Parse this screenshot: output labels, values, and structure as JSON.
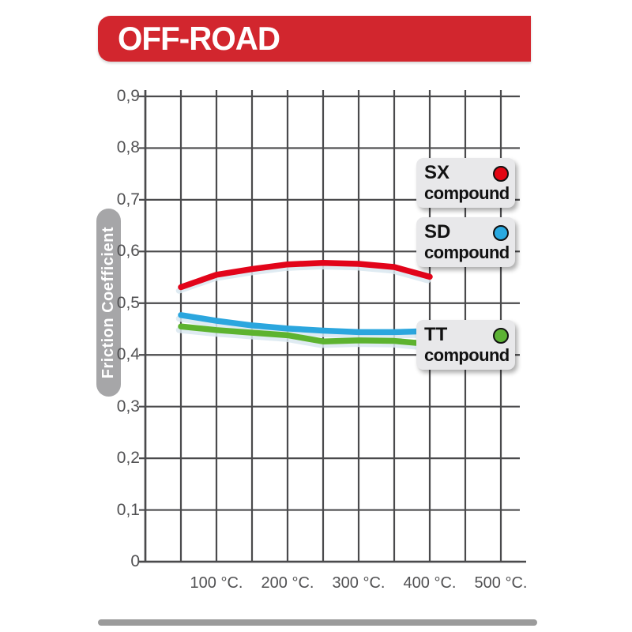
{
  "banner": {
    "title": "OFF-ROAD",
    "bg_color": "#d2262e",
    "text_color": "#ffffff"
  },
  "chart_data": {
    "type": "line",
    "title": "",
    "xlabel": "",
    "ylabel": "Friction Coefficient",
    "x_unit": "°C",
    "xlim": [
      0,
      525
    ],
    "ylim": [
      0,
      0.9
    ],
    "grid": true,
    "grid_color": "#4a4a4c",
    "x_grid_step": 50,
    "y_grid_step": 0.1,
    "x": [
      50,
      100,
      150,
      200,
      250,
      300,
      350,
      400
    ],
    "series": [
      {
        "name": "SX",
        "suffix": "compound",
        "color": "#e2041a",
        "dot_color": "#e30613",
        "values": [
          0.531,
          0.555,
          0.566,
          0.575,
          0.578,
          0.576,
          0.57,
          0.551
        ]
      },
      {
        "name": "SD",
        "suffix": "compound",
        "color": "#2ba6de",
        "dot_color": "#29a9e0",
        "values": [
          0.477,
          0.466,
          0.457,
          0.451,
          0.447,
          0.444,
          0.444,
          0.446
        ]
      },
      {
        "name": "TT",
        "suffix": "compound",
        "color": "#5db32f",
        "dot_color": "#5cb234",
        "values": [
          0.455,
          0.448,
          0.443,
          0.438,
          0.426,
          0.428,
          0.427,
          0.421
        ]
      }
    ],
    "x_ticks": [
      {
        "value": 100,
        "label": "100 °C."
      },
      {
        "value": 200,
        "label": "200 °C."
      },
      {
        "value": 300,
        "label": "300 °C."
      },
      {
        "value": 400,
        "label": "400 °C."
      },
      {
        "value": 500,
        "label": "500 °C."
      }
    ],
    "y_ticks": [
      {
        "value": 0.0,
        "label": "0"
      },
      {
        "value": 0.1,
        "label": "0,1"
      },
      {
        "value": 0.2,
        "label": "0,2"
      },
      {
        "value": 0.3,
        "label": "0,3"
      },
      {
        "value": 0.4,
        "label": "0,4"
      },
      {
        "value": 0.5,
        "label": "0,5"
      },
      {
        "value": 0.6,
        "label": "0,6"
      },
      {
        "value": 0.7,
        "label": "0,7"
      },
      {
        "value": 0.8,
        "label": "0,8"
      },
      {
        "value": 0.9,
        "label": "0,9"
      }
    ],
    "legend_position": "right-overlay",
    "tick_color": "#515153"
  },
  "footer": {
    "bar_color": "#9b9b9b"
  }
}
